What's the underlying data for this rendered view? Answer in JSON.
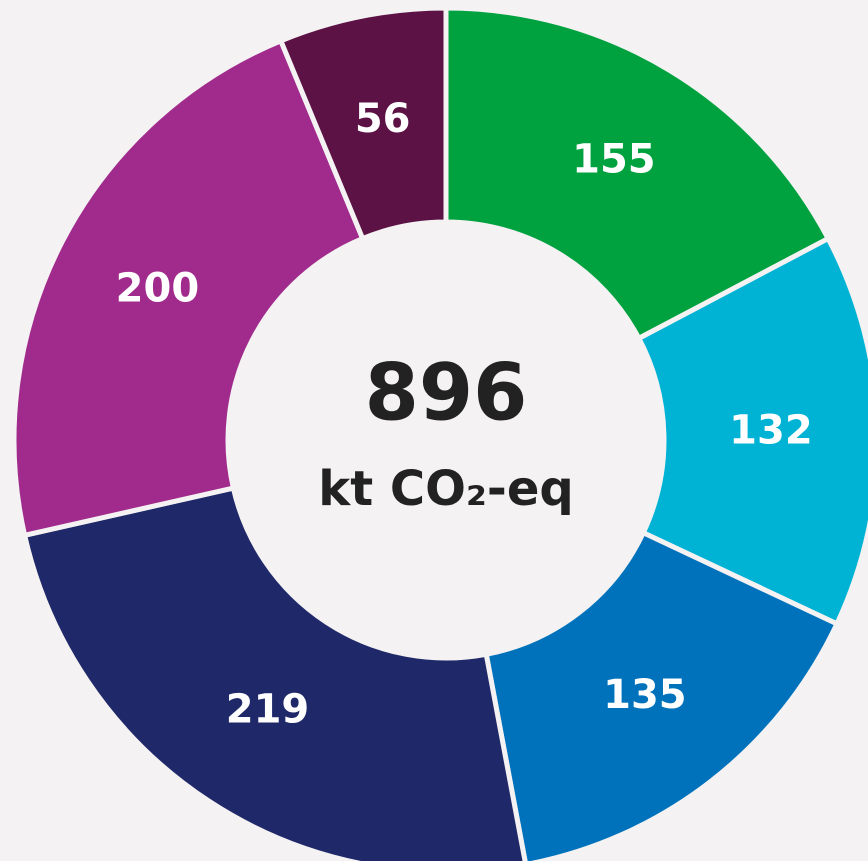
{
  "chart_data": {
    "type": "donut",
    "values": [
      155,
      132,
      135,
      219,
      200,
      56
    ],
    "colors": [
      "#00a13f",
      "#00b3d4",
      "#0072bb",
      "#1f2868",
      "#a12b8c",
      "#5c1244"
    ],
    "center_value": 896,
    "center_unit": "kt CO₂-eq"
  }
}
